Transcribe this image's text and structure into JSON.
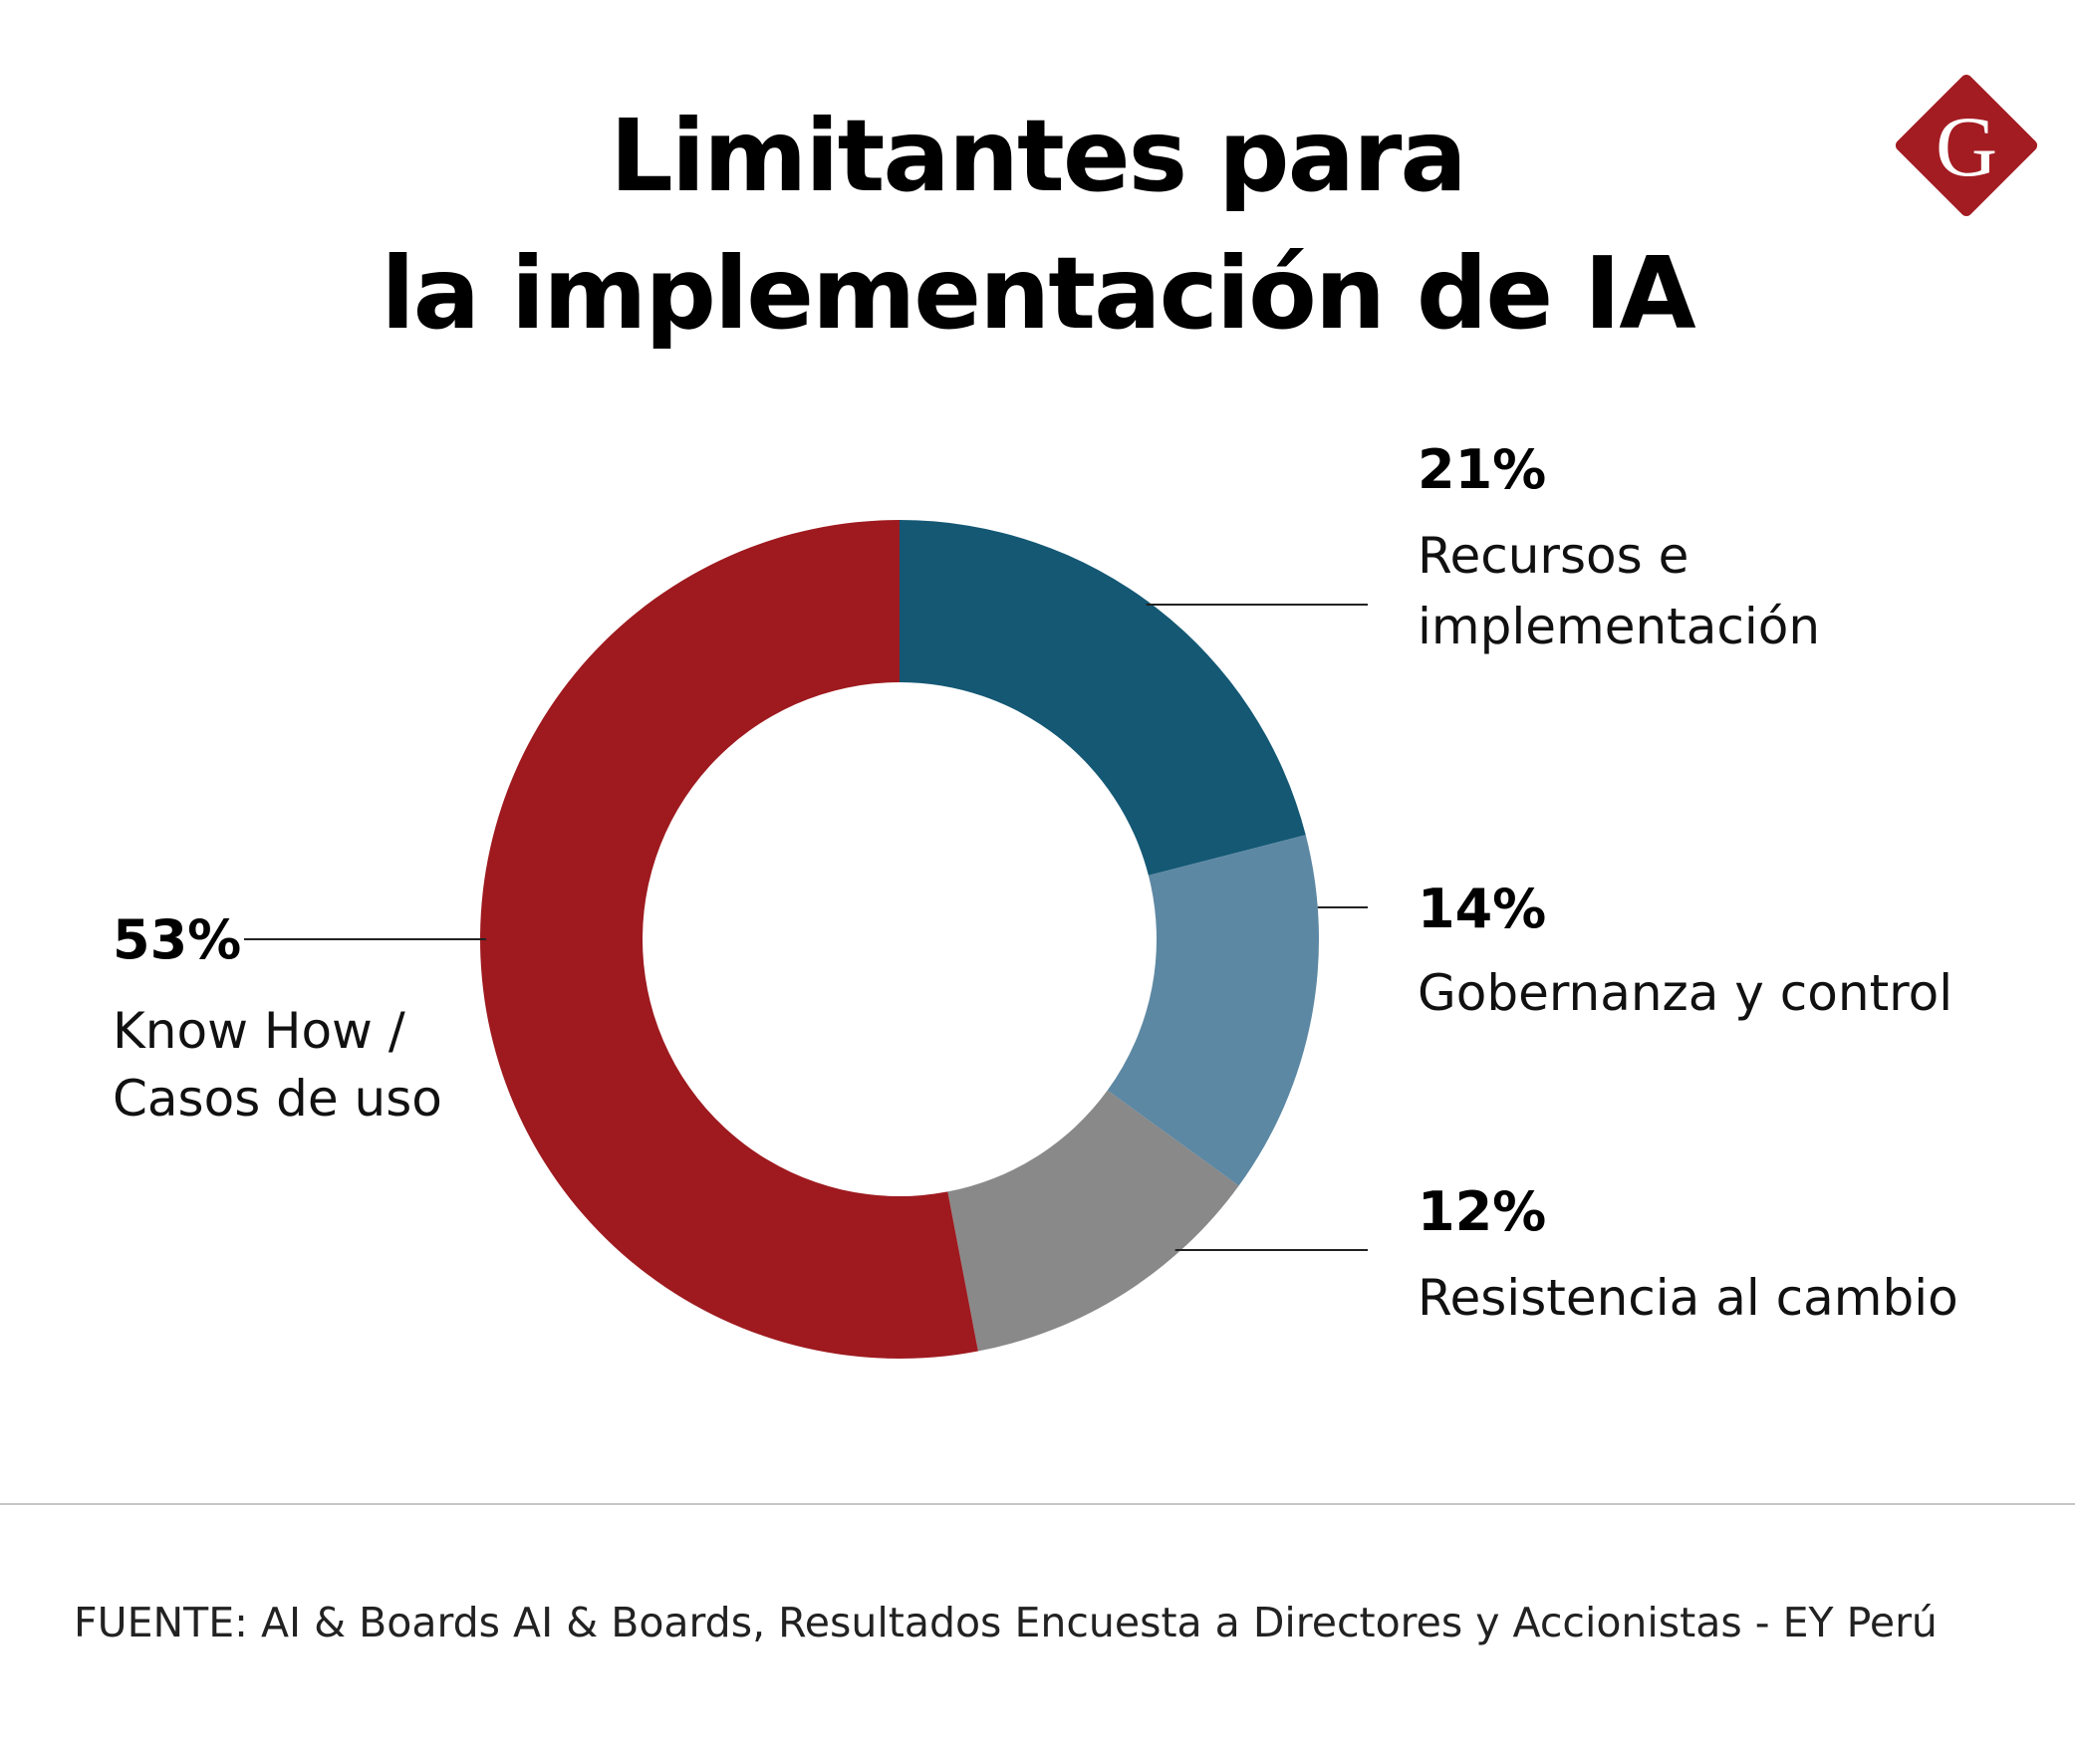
{
  "title": {
    "line1": "Limitantes para",
    "line2": "la implementación de IA"
  },
  "logo": {
    "letter": "G",
    "icon": "g-diamond-logo-icon"
  },
  "colors": {
    "know_how": "#9e1a1f",
    "recursos": "#145874",
    "gobernanza": "#5d88a3",
    "resistencia": "#898989",
    "logo": "#a31c22"
  },
  "chart_data": {
    "type": "pie",
    "variant": "donut",
    "start_angle": "top",
    "direction": "clockwise",
    "slices": [
      {
        "pct_label": "21%",
        "value": 21,
        "label_lines": [
          "Recursos e",
          "implementación"
        ],
        "color": "#145874"
      },
      {
        "pct_label": "14%",
        "value": 14,
        "label_lines": [
          "Gobernanza y control"
        ],
        "color": "#5d88a3"
      },
      {
        "pct_label": "12%",
        "value": 12,
        "label_lines": [
          "Resistencia al cambio"
        ],
        "color": "#898989"
      },
      {
        "pct_label": "53%",
        "value": 53,
        "label_lines": [
          "Know How /",
          "Casos de uso"
        ],
        "color": "#9e1a1f"
      }
    ]
  },
  "source": "FUENTE: AI & Boards AI & Boards, Resultados Encuesta a Directores y Accionistas - EY Perú"
}
